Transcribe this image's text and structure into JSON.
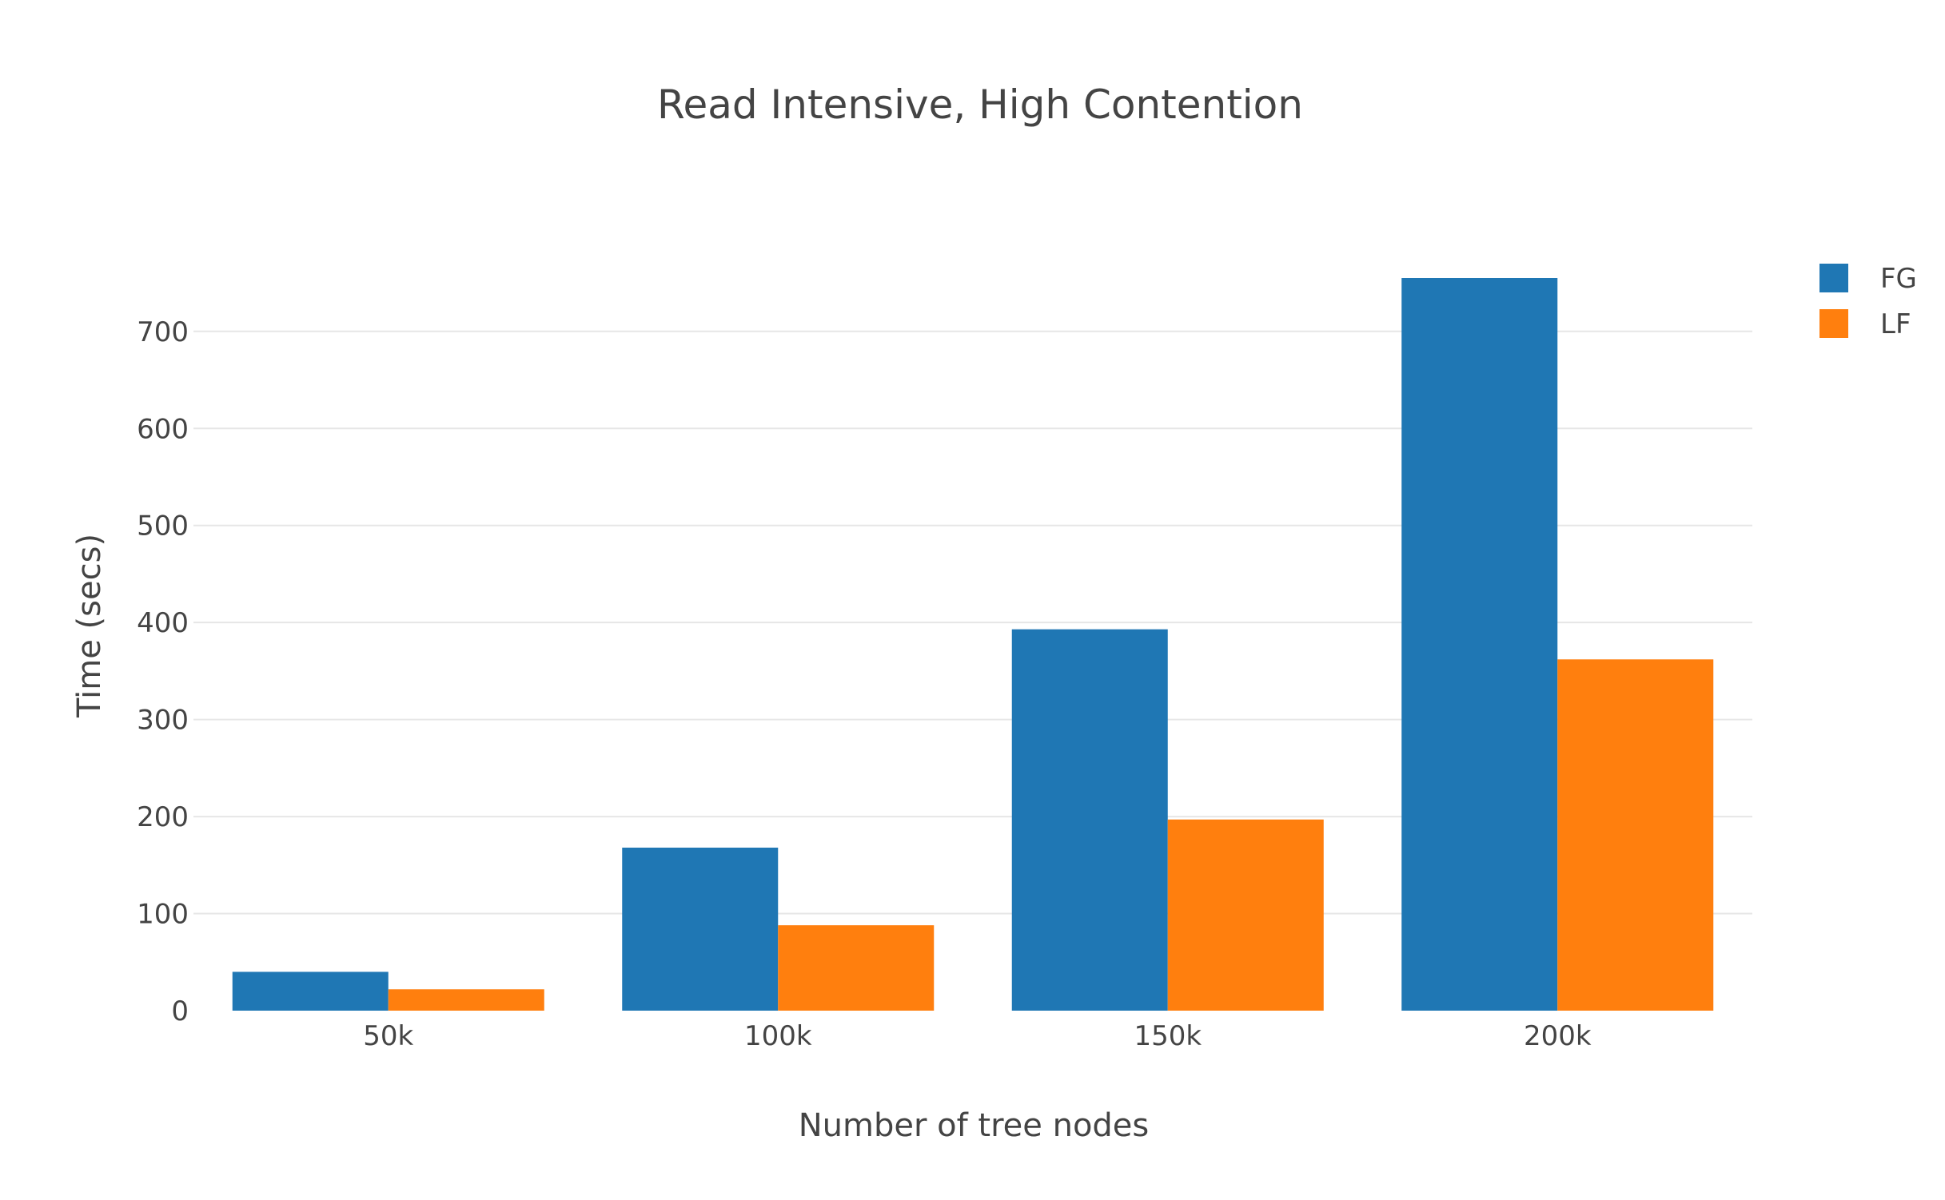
{
  "chart_data": {
    "type": "bar",
    "title": "Read Intensive, High Contention",
    "xlabel": "Number of tree nodes",
    "ylabel": "Time (secs)",
    "categories": [
      "50k",
      "100k",
      "150k",
      "200k"
    ],
    "series": [
      {
        "name": "FG",
        "color": "#1f77b4",
        "values": [
          40,
          168,
          393,
          755
        ]
      },
      {
        "name": "LF",
        "color": "#ff7f0e",
        "values": [
          22,
          88,
          197,
          362
        ]
      }
    ],
    "ylim": [
      0,
      755
    ],
    "yticks": [
      0,
      100,
      200,
      300,
      400,
      500,
      600,
      700
    ],
    "grid": true,
    "legend_position": "top-right"
  }
}
